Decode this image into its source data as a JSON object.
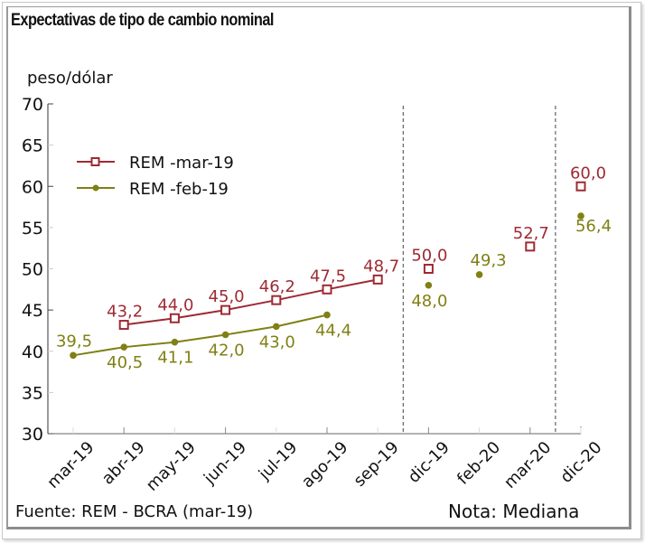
{
  "title": "Expectativas de tipo de cambio nominal",
  "footer": {
    "source": "Fuente: REM - BCRA (mar-19)",
    "note": "Nota: Mediana"
  },
  "colors": {
    "rem_mar": "#9e2a33",
    "rem_feb": "#808014",
    "axis": "#333333"
  },
  "chart_data": {
    "type": "line",
    "title": "Expectativas de tipo de cambio nominal",
    "ylabel": "peso/dólar",
    "xlabel": "",
    "ylim": [
      30,
      70
    ],
    "yticks": [
      30,
      35,
      40,
      45,
      50,
      55,
      60,
      65,
      70
    ],
    "categories": [
      "mar-19",
      "abr-19",
      "may-19",
      "jun-19",
      "jul-19",
      "ago-19",
      "sep-19",
      "dic-19",
      "feb-20",
      "mar-20",
      "dic-20"
    ],
    "vertical_dashed_separators_after": [
      "sep-19",
      "mar-20"
    ],
    "legend": {
      "placement": "top-left",
      "entries": [
        "REM -mar-19",
        "REM -feb-19"
      ]
    },
    "series": [
      {
        "name": "REM -mar-19",
        "marker": "open-square",
        "color": "#9e2a33",
        "values": [
          null,
          43.2,
          44.0,
          45.0,
          46.2,
          47.5,
          48.7,
          50.0,
          null,
          52.7,
          60.0
        ],
        "labels": [
          null,
          "43,2",
          "44,0",
          "45,0",
          "46,2",
          "47,5",
          "48,7",
          "50,0",
          null,
          "52,7",
          "60,0"
        ],
        "connected_through": "sep-19"
      },
      {
        "name": "REM -feb-19",
        "marker": "filled-circle",
        "color": "#808014",
        "values": [
          39.5,
          40.5,
          41.1,
          42.0,
          43.0,
          44.4,
          null,
          48.0,
          49.3,
          null,
          56.4
        ],
        "labels": [
          "39,5",
          "40,5",
          "41,1",
          "42,0",
          "43,0",
          "44,4",
          null,
          "48,0",
          "49,3",
          null,
          "56,4"
        ],
        "connected_through": "ago-19"
      }
    ]
  }
}
